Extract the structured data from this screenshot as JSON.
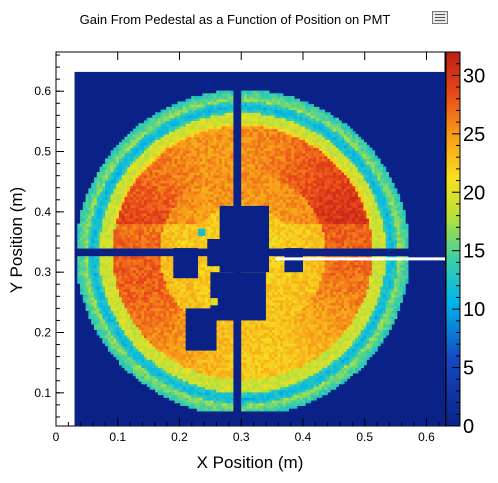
{
  "window": {
    "menu_icon": "canvas-menu-icon"
  },
  "chart_data": {
    "type": "heatmap",
    "title": "Gain From Pedestal as a Function of Position on PMT",
    "xlabel": "X Position (m)",
    "ylabel": "Y Position (m)",
    "xlim": [
      0,
      0.63
    ],
    "ylim": [
      0.045,
      0.665
    ],
    "x_ticks": [
      "0",
      "0.1",
      "0.2",
      "0.3",
      "0.4",
      "0.5",
      "0.6"
    ],
    "y_ticks": [
      "0.1",
      "0.2",
      "0.3",
      "0.4",
      "0.5",
      "0.6"
    ],
    "x_tick_values": [
      0,
      0.1,
      0.2,
      0.3,
      0.4,
      0.5,
      0.6
    ],
    "y_tick_values": [
      0.1,
      0.2,
      0.3,
      0.4,
      0.5,
      0.6
    ],
    "colorbar": {
      "min": 0,
      "max": 32,
      "ticks": [
        "0",
        "5",
        "10",
        "15",
        "20",
        "25",
        "30"
      ],
      "tick_values": [
        0,
        5,
        10,
        15,
        20,
        25,
        30
      ],
      "palette": "rainbow"
    },
    "filled_region": {
      "x": [
        0.03,
        0.63
      ],
      "y": [
        0.045,
        0.632
      ],
      "background_value": 0
    },
    "disk": {
      "center_x": 0.3,
      "center_y": 0.33,
      "radius": 0.27
    },
    "central_value": 24,
    "zones": [
      {
        "description": "outer rim",
        "r_range": [
          0.23,
          0.27
        ],
        "value": 16
      },
      {
        "description": "inner band",
        "r_range": [
          0.17,
          0.22
        ],
        "value": 22
      },
      {
        "description": "core",
        "r_range": [
          0.0,
          0.17
        ],
        "value": 24
      }
    ],
    "dead_strips": [
      {
        "orientation": "vertical",
        "x": [
          0.284,
          0.297
        ],
        "y": [
          0.065,
          0.62
        ]
      },
      {
        "orientation": "horizontal",
        "x": [
          0.02,
          0.58
        ],
        "y": [
          0.326,
          0.336
        ]
      }
    ],
    "highlight_line": {
      "x": [
        0.355,
        0.63
      ],
      "y": 0.322,
      "color": "#ffffff"
    },
    "grid": false,
    "legend": "none"
  }
}
